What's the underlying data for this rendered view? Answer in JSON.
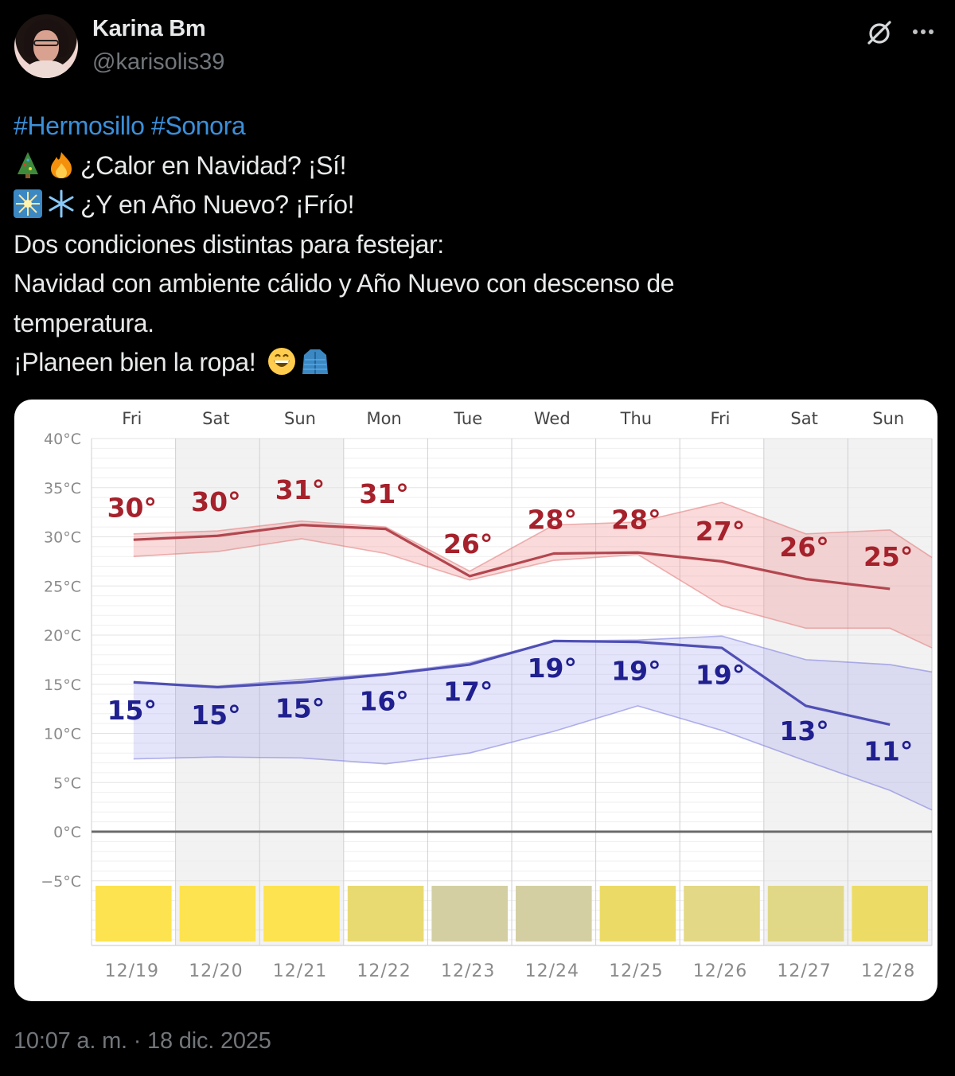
{
  "tweet": {
    "author": {
      "display_name": "Karina Bm",
      "handle": "@karisolis39"
    },
    "actions": {
      "grok_icon": "grok-icon",
      "more_icon": "more-icon"
    },
    "text": {
      "hashtag1": "#Hermosillo",
      "hashtag2": "#Sonora",
      "line2": "¿Calor en Navidad? ¡Sí!",
      "line2_emojis": [
        "christmas-tree",
        "fire"
      ],
      "line3": "¿Y en Año Nuevo? ¡Frío!",
      "line3_emojis": [
        "sparkler",
        "snowflake"
      ],
      "line4": "Dos condiciones distintas para festejar:",
      "line5": "Navidad con ambiente cálido y Año Nuevo con descenso de",
      "line6": "temperatura.",
      "line7": "¡Planeen bien la ropa!",
      "line7_emojis": [
        "grinning-face",
        "coat"
      ]
    },
    "timestamp": "10:07 a. m. · 18 dic. 2025"
  },
  "chart_data": {
    "type": "line",
    "title": "",
    "xlabel": "",
    "ylabel": "",
    "ylim": [
      -5,
      40
    ],
    "y_ticks": [
      "40°C",
      "35°C",
      "30°C",
      "25°C",
      "20°C",
      "15°C",
      "10°C",
      "5°C",
      "0°C",
      "-5°C"
    ],
    "categories_top": [
      "Fri",
      "Sat",
      "Sun",
      "Mon",
      "Tue",
      "Wed",
      "Thu",
      "Fri",
      "Sat",
      "Sun"
    ],
    "categories": [
      "12/19",
      "12/20",
      "12/21",
      "12/22",
      "12/23",
      "12/24",
      "12/25",
      "12/26",
      "12/27",
      "12/28"
    ],
    "series": [
      {
        "name": "High",
        "color": "#a5212b",
        "labels": [
          "30°",
          "30°",
          "31°",
          "31°",
          "26°",
          "28°",
          "28°",
          "27°",
          "26°",
          "25°"
        ],
        "values": [
          29.7,
          30.1,
          31.2,
          30.8,
          26.0,
          28.3,
          28.4,
          27.5,
          25.7,
          24.7
        ],
        "range_upper": [
          30.3,
          30.6,
          31.6,
          31.0,
          26.5,
          31.2,
          31.5,
          33.5,
          30.3,
          30.7
        ],
        "range_lower": [
          28.0,
          28.5,
          29.8,
          28.3,
          25.6,
          27.6,
          28.2,
          23.0,
          20.7,
          20.7
        ]
      },
      {
        "name": "Low",
        "color": "#1f1f8f",
        "labels": [
          "15°",
          "15°",
          "15°",
          "16°",
          "17°",
          "19°",
          "19°",
          "19°",
          "13°",
          "11°"
        ],
        "values": [
          15.2,
          14.7,
          15.2,
          16.0,
          17.0,
          19.4,
          19.3,
          18.7,
          12.8,
          10.9
        ],
        "range_upper": [
          15.2,
          14.8,
          15.5,
          16.1,
          17.2,
          19.4,
          19.5,
          19.9,
          17.5,
          17.0
        ],
        "range_lower": [
          7.4,
          7.6,
          7.5,
          6.9,
          8.0,
          10.2,
          12.8,
          10.3,
          7.2,
          4.2
        ]
      }
    ],
    "condition_bars": [
      "#fde34f",
      "#fde34f",
      "#fde34f",
      "#e8da70",
      "#d3cfa3",
      "#d3cfa3",
      "#ebdb66",
      "#e3d885",
      "#e0d887",
      "#ecdc66"
    ],
    "weekend_shading": [
      "Sat",
      "Sun",
      "Sat",
      "Sun"
    ],
    "grid": true,
    "legend": "none"
  }
}
